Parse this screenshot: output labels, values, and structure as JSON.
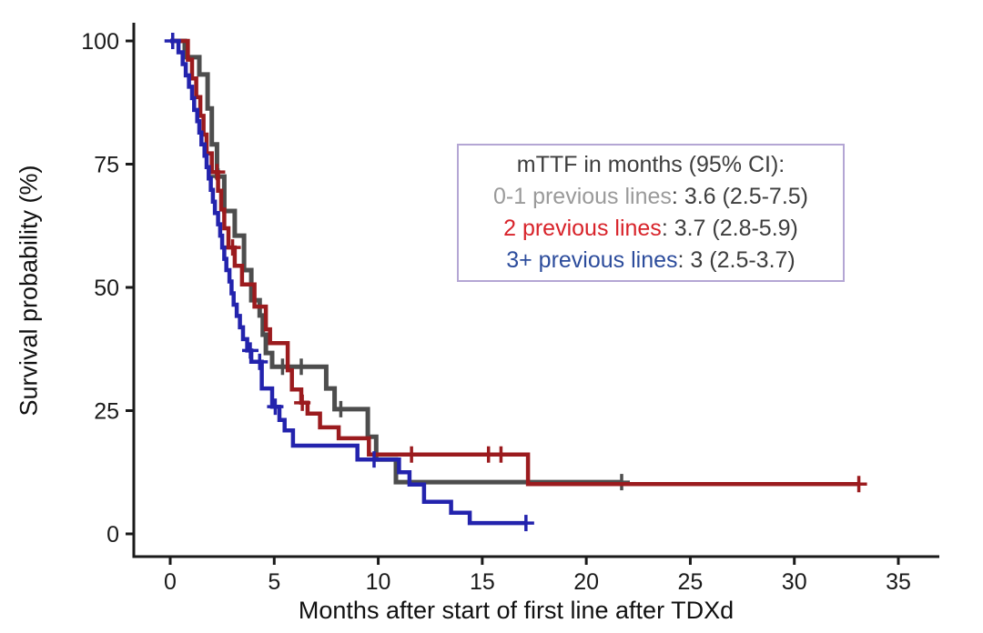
{
  "figure": {
    "background": "#ffffff"
  },
  "chart_data": {
    "type": "line",
    "subtype": "kaplan-meier-step-survival",
    "title": "",
    "xlabel": "Months after start of first line after TDXd",
    "ylabel": "Survival probability (%)",
    "xlim": [
      0,
      37
    ],
    "ylim": [
      0,
      100
    ],
    "xticks": [
      0,
      5,
      10,
      15,
      20,
      25,
      30,
      35
    ],
    "yticks": [
      0,
      25,
      50,
      75,
      100
    ],
    "grid": false,
    "axis_color": "#1a1a1a",
    "tick_label_color": "#1a1a1a",
    "legend": {
      "position": "upper-right-inside",
      "border_color": "#b4a6d4",
      "title": "mTTF in months (95% CI):",
      "title_color": "#3d3d3d",
      "value_color": "#3d3d3d"
    },
    "series": [
      {
        "name": "0-1 previous lines",
        "legend_value": ": 3.6 (2.5-7.5)",
        "mttf_months": 3.6,
        "ci_low": 2.5,
        "ci_high": 7.5,
        "color": "#4d4d4d",
        "legend_label_color": "#9a9a9a",
        "stroke_width": 5,
        "points": [
          [
            0,
            100
          ],
          [
            0.7,
            96.7
          ],
          [
            1.4,
            93.2
          ],
          [
            1.8,
            86.3
          ],
          [
            2.0,
            79.0
          ],
          [
            2.25,
            72.5
          ],
          [
            2.6,
            65.5
          ],
          [
            3.1,
            60.5
          ],
          [
            3.55,
            53.5
          ],
          [
            3.9,
            47.4
          ],
          [
            4.3,
            44.3
          ],
          [
            4.45,
            40.4
          ],
          [
            4.6,
            36.7
          ],
          [
            4.9,
            33.9
          ],
          [
            7.5,
            29.5
          ],
          [
            7.9,
            25.3
          ],
          [
            9.5,
            19.7
          ],
          [
            9.9,
            15.1
          ],
          [
            10.85,
            10.5
          ]
        ],
        "censor_marks": [
          [
            2.3,
            72.5
          ],
          [
            5.4,
            33.9
          ],
          [
            6.3,
            33.9
          ],
          [
            8.2,
            25.3
          ],
          [
            21.7,
            10.5
          ]
        ],
        "end_month": 21.7
      },
      {
        "name": "2 previous lines",
        "legend_value": ": 3.7 (2.8-5.9)",
        "mttf_months": 3.7,
        "ci_low": 2.8,
        "ci_high": 5.9,
        "color": "#9b1b1e",
        "legend_label_color": "#d8232a",
        "stroke_width": 4.5,
        "points": [
          [
            0,
            100
          ],
          [
            0.85,
            96.2
          ],
          [
            1.05,
            92.4
          ],
          [
            1.25,
            88.6
          ],
          [
            1.45,
            84.8
          ],
          [
            1.6,
            81.0
          ],
          [
            1.75,
            77.2
          ],
          [
            2.0,
            73.4
          ],
          [
            2.3,
            69.6
          ],
          [
            2.45,
            65.8
          ],
          [
            2.6,
            62.0
          ],
          [
            2.8,
            58.1
          ],
          [
            3.1,
            54.4
          ],
          [
            3.45,
            50.6
          ],
          [
            4.05,
            46.1
          ],
          [
            4.6,
            41.5
          ],
          [
            4.8,
            38.7
          ],
          [
            5.65,
            33.2
          ],
          [
            5.85,
            29.3
          ],
          [
            6.3,
            26.6
          ],
          [
            6.6,
            24.4
          ],
          [
            7.2,
            21.6
          ],
          [
            8.1,
            19.4
          ],
          [
            9.55,
            16.1
          ],
          [
            17.2,
            10.1
          ]
        ],
        "censor_marks": [
          [
            2.25,
            73.4
          ],
          [
            3.0,
            58.1
          ],
          [
            6.35,
            26.6
          ],
          [
            11.6,
            16.1
          ],
          [
            15.3,
            16.1
          ],
          [
            15.9,
            16.1
          ],
          [
            33.1,
            10.1
          ]
        ],
        "end_month": 33.1
      },
      {
        "name": "3+ previous lines",
        "legend_value": ": 3 (2.5-3.7)",
        "mttf_months": 3,
        "ci_low": 2.5,
        "ci_high": 3.7,
        "color": "#2323ad",
        "legend_label_color": "#2c4c9c",
        "stroke_width": 4.5,
        "points": [
          [
            0,
            100
          ],
          [
            0.4,
            97.7
          ],
          [
            0.6,
            95.3
          ],
          [
            0.75,
            93.0
          ],
          [
            0.9,
            90.7
          ],
          [
            1.05,
            88.4
          ],
          [
            1.15,
            86.0
          ],
          [
            1.3,
            83.7
          ],
          [
            1.4,
            81.4
          ],
          [
            1.5,
            79.0
          ],
          [
            1.65,
            76.7
          ],
          [
            1.75,
            74.4
          ],
          [
            1.85,
            72.1
          ],
          [
            1.95,
            69.8
          ],
          [
            2.05,
            67.4
          ],
          [
            2.15,
            65.1
          ],
          [
            2.3,
            62.8
          ],
          [
            2.4,
            60.5
          ],
          [
            2.5,
            58.1
          ],
          [
            2.6,
            55.8
          ],
          [
            2.7,
            53.5
          ],
          [
            2.85,
            51.2
          ],
          [
            2.95,
            48.8
          ],
          [
            3.05,
            46.5
          ],
          [
            3.2,
            44.2
          ],
          [
            3.35,
            41.9
          ],
          [
            3.5,
            39.5
          ],
          [
            3.7,
            37.2
          ],
          [
            3.9,
            34.9
          ],
          [
            4.4,
            29.5
          ],
          [
            4.9,
            25.8
          ],
          [
            5.25,
            23.1
          ],
          [
            5.5,
            21.0
          ],
          [
            5.9,
            17.9
          ],
          [
            9.0,
            15.1
          ],
          [
            11.0,
            12.5
          ],
          [
            11.5,
            10.0
          ],
          [
            12.2,
            6.5
          ],
          [
            13.5,
            4.3
          ],
          [
            14.4,
            2.2
          ]
        ],
        "censor_marks": [
          [
            0.12,
            100
          ],
          [
            3.85,
            37.2
          ],
          [
            4.3,
            34.9
          ],
          [
            5.05,
            25.8
          ],
          [
            9.8,
            15.1
          ],
          [
            17.1,
            2.2
          ]
        ],
        "end_month": 17.1
      }
    ]
  }
}
